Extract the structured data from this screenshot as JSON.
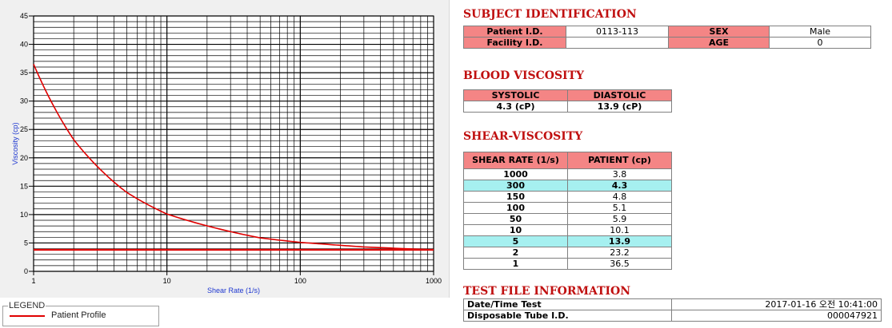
{
  "chart_data": {
    "type": "line",
    "x_scale": "log",
    "xlabel": "Shear Rate (1/s)",
    "ylabel": "Viscosity (cp)",
    "xlim": [
      1,
      1000
    ],
    "ylim": [
      0,
      45
    ],
    "x_tick_labels": [
      "1",
      "10",
      "100",
      "1000"
    ],
    "y_tick_labels": [
      "0",
      "5",
      "10",
      "15",
      "20",
      "25",
      "30",
      "35",
      "40",
      "45"
    ],
    "grid": true,
    "series": [
      {
        "name": "Patient Profile",
        "color": "#e00000",
        "x": [
          1,
          2,
          5,
          10,
          50,
          100,
          150,
          300,
          1000
        ],
        "y": [
          36.5,
          23.2,
          13.9,
          10.1,
          5.9,
          5.1,
          4.8,
          4.3,
          3.8
        ]
      },
      {
        "color": "#e00000",
        "x": [
          1,
          1000
        ],
        "y": [
          3.8,
          3.8
        ]
      }
    ]
  },
  "legend": {
    "title": "LEGEND",
    "items": [
      {
        "label": "Patient Profile",
        "color": "#e00000"
      }
    ]
  },
  "subject": {
    "heading": "SUBJECT IDENTIFICATION",
    "patient_id_label": "Patient I.D.",
    "patient_id": "0113-113",
    "sex_label": "SEX",
    "sex": "Male",
    "facility_id_label": "Facility I.D.",
    "facility_id": "",
    "age_label": "AGE",
    "age": "0"
  },
  "blood": {
    "heading": "BLOOD VISCOSITY",
    "systolic_label": "SYSTOLIC",
    "diastolic_label": "DIASTOLIC",
    "systolic": "4.3 (cP)",
    "diastolic": "13.9 (cP)"
  },
  "shear": {
    "heading": "SHEAR-VISCOSITY",
    "col_rate": "SHEAR RATE (1/s)",
    "col_patient": "PATIENT (cp)",
    "rows": [
      {
        "rate": "1000",
        "cp": "3.8",
        "hl": false
      },
      {
        "rate": "300",
        "cp": "4.3",
        "hl": true
      },
      {
        "rate": "150",
        "cp": "4.8",
        "hl": false
      },
      {
        "rate": "100",
        "cp": "5.1",
        "hl": false
      },
      {
        "rate": "50",
        "cp": "5.9",
        "hl": false
      },
      {
        "rate": "10",
        "cp": "10.1",
        "hl": false
      },
      {
        "rate": "5",
        "cp": "13.9",
        "hl": true
      },
      {
        "rate": "2",
        "cp": "23.2",
        "hl": false
      },
      {
        "rate": "1",
        "cp": "36.5",
        "hl": false
      }
    ]
  },
  "testfile": {
    "heading": "TEST FILE INFORMATION",
    "datetime_label": "Date/Time Test",
    "datetime": "2017-01-16  오전 10:41:00",
    "tube_label": "Disposable Tube I.D.",
    "tube": "000047921"
  }
}
